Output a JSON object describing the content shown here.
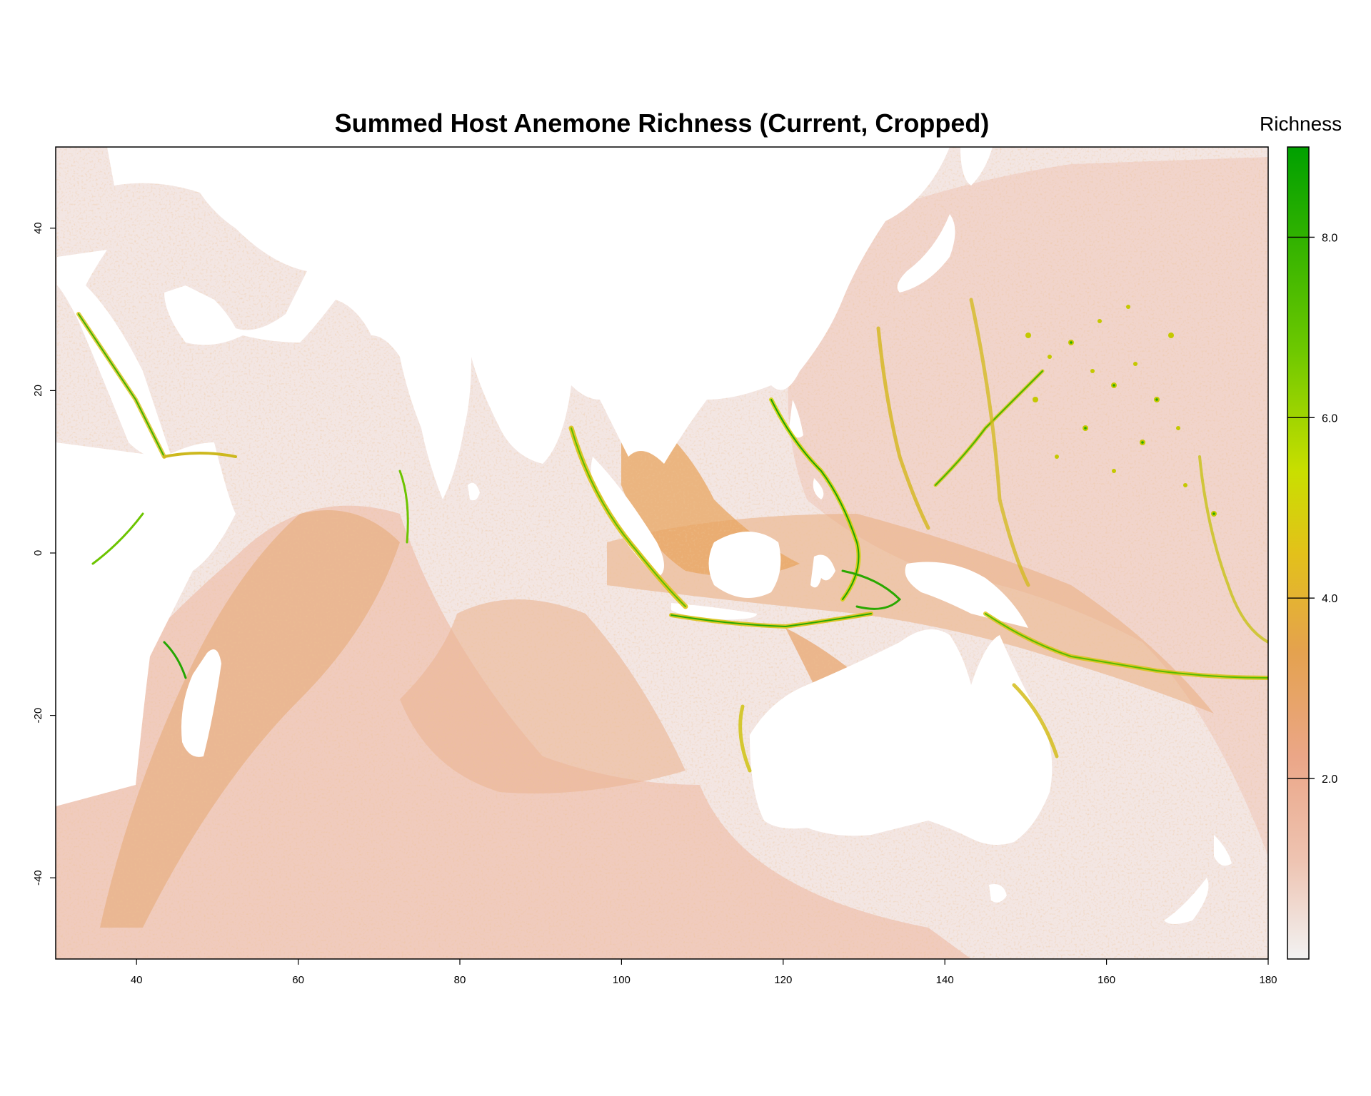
{
  "chart_data": {
    "type": "heatmap",
    "title": "Summed Host Anemone Richness (Current, Cropped)",
    "xlabel": "",
    "ylabel": "",
    "xlim": [
      30,
      180
    ],
    "ylim": [
      -50,
      50
    ],
    "x_ticks": [
      40,
      60,
      80,
      100,
      120,
      140,
      160,
      180
    ],
    "y_ticks": [
      40,
      20,
      0,
      -20,
      -40
    ],
    "legend": {
      "title": "Richness",
      "range": [
        0,
        9
      ],
      "ticks": [
        2.0,
        4.0,
        6.0,
        8.0
      ],
      "tick_labels": [
        "2.0",
        "4.0",
        "6.0",
        "8.0"
      ],
      "colors": [
        "#f2f2f2",
        "#eeb99f",
        "#e8a35e",
        "#e0b422",
        "#e6e600",
        "#9fd400",
        "#3bb300",
        "#00a600"
      ]
    },
    "land_color": "#ffffff"
  }
}
